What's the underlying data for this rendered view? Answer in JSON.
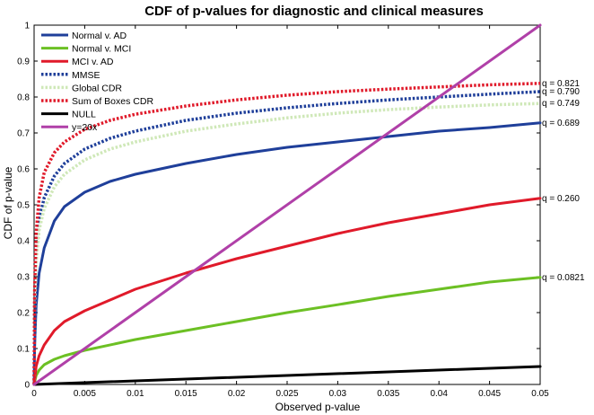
{
  "chart_data": {
    "type": "line",
    "title": "CDF of p-values for diagnostic and clinical measures",
    "xlabel": "Observed p-value",
    "ylabel": "CDF of p-value",
    "xlim": [
      0,
      0.05
    ],
    "ylim": [
      0,
      1
    ],
    "xticks": [
      "0",
      "0.005",
      "0.01",
      "0.015",
      "0.02",
      "0.025",
      "0.03",
      "0.035",
      "0.04",
      "0.045",
      "0.05"
    ],
    "yticks": [
      "0",
      "0.1",
      "0.2",
      "0.3",
      "0.4",
      "0.5",
      "0.6",
      "0.7",
      "0.8",
      "0.9",
      "1"
    ],
    "grid": false,
    "legend_position": "top-left",
    "series": [
      {
        "name": "Normal v. AD",
        "color": "#1f3f9a",
        "style": "solid",
        "x": [
          0,
          5e-05,
          0.0002,
          0.0005,
          0.001,
          0.002,
          0.003,
          0.005,
          0.0075,
          0.01,
          0.015,
          0.02,
          0.025,
          0.03,
          0.035,
          0.04,
          0.045,
          0.05
        ],
        "y": [
          0,
          0.1,
          0.22,
          0.31,
          0.38,
          0.455,
          0.495,
          0.535,
          0.565,
          0.585,
          0.615,
          0.64,
          0.66,
          0.675,
          0.69,
          0.705,
          0.715,
          0.728
        ],
        "annotation": "q = 0.689"
      },
      {
        "name": "Normal v. MCI",
        "color": "#6cc024",
        "style": "solid",
        "x": [
          0,
          0.0002,
          0.0005,
          0.001,
          0.002,
          0.003,
          0.005,
          0.01,
          0.015,
          0.02,
          0.025,
          0.03,
          0.035,
          0.04,
          0.045,
          0.05
        ],
        "y": [
          0,
          0.025,
          0.04,
          0.055,
          0.07,
          0.08,
          0.095,
          0.125,
          0.15,
          0.175,
          0.2,
          0.222,
          0.245,
          0.265,
          0.285,
          0.298
        ],
        "annotation": "q = 0.0821"
      },
      {
        "name": "MCI v. AD",
        "color": "#e01a2a",
        "style": "solid",
        "x": [
          0,
          0.0002,
          0.0005,
          0.001,
          0.002,
          0.003,
          0.005,
          0.0075,
          0.01,
          0.015,
          0.02,
          0.025,
          0.03,
          0.035,
          0.04,
          0.045,
          0.05
        ],
        "y": [
          0,
          0.05,
          0.08,
          0.11,
          0.15,
          0.175,
          0.205,
          0.235,
          0.265,
          0.31,
          0.35,
          0.385,
          0.42,
          0.45,
          0.475,
          0.5,
          0.518
        ],
        "annotation": "q = 0.260"
      },
      {
        "name": "MMSE",
        "color": "#1f3f9a",
        "style": "dotted",
        "x": [
          0,
          5e-05,
          0.0002,
          0.0005,
          0.001,
          0.002,
          0.003,
          0.005,
          0.0075,
          0.01,
          0.015,
          0.02,
          0.025,
          0.03,
          0.035,
          0.04,
          0.045,
          0.05
        ],
        "y": [
          0,
          0.22,
          0.37,
          0.46,
          0.52,
          0.58,
          0.615,
          0.655,
          0.685,
          0.705,
          0.735,
          0.755,
          0.77,
          0.782,
          0.792,
          0.8,
          0.808,
          0.815
        ],
        "annotation": "q = 0.790"
      },
      {
        "name": "Global CDR",
        "color": "#cfe8b8",
        "style": "dotted",
        "x": [
          0,
          5e-05,
          0.0002,
          0.0005,
          0.001,
          0.002,
          0.003,
          0.005,
          0.0075,
          0.01,
          0.015,
          0.02,
          0.025,
          0.03,
          0.035,
          0.04,
          0.045,
          0.05
        ],
        "y": [
          0,
          0.2,
          0.34,
          0.43,
          0.49,
          0.55,
          0.585,
          0.625,
          0.655,
          0.675,
          0.705,
          0.725,
          0.742,
          0.755,
          0.765,
          0.772,
          0.778,
          0.782
        ],
        "annotation": "q = 0.749"
      },
      {
        "name": "Sum of Boxes CDR",
        "color": "#e01a2a",
        "style": "dotted",
        "x": [
          0,
          5e-05,
          0.0002,
          0.0005,
          0.001,
          0.002,
          0.003,
          0.005,
          0.0075,
          0.01,
          0.015,
          0.02,
          0.025,
          0.03,
          0.035,
          0.04,
          0.045,
          0.05
        ],
        "y": [
          0,
          0.26,
          0.42,
          0.52,
          0.59,
          0.645,
          0.675,
          0.71,
          0.735,
          0.752,
          0.775,
          0.792,
          0.805,
          0.815,
          0.822,
          0.828,
          0.834,
          0.838
        ],
        "annotation": "q = 0.821"
      },
      {
        "name": "NULL",
        "color": "#000000",
        "style": "solid",
        "x": [
          0,
          0.05
        ],
        "y": [
          0,
          0.05
        ]
      },
      {
        "name": "y=20x",
        "color": "#b040a8",
        "style": "solid",
        "x": [
          0,
          0.05
        ],
        "y": [
          0,
          1
        ]
      }
    ]
  }
}
